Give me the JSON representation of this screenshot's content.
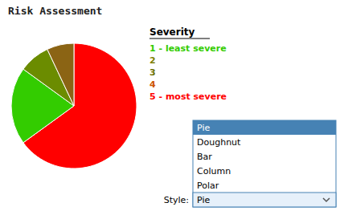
{
  "chart_data": {
    "type": "pie",
    "title": "Risk Assessment",
    "values": [
      65,
      20,
      8,
      7
    ],
    "colors": [
      "#ff0000",
      "#33cc00",
      "#6b8c00",
      "#8B6414"
    ],
    "legend_title": "Severity",
    "legend_items": [
      {
        "label": "1 - least severe",
        "color": "#33cc00"
      },
      {
        "label": "2",
        "color": "#808000"
      },
      {
        "label": "3",
        "color": "#6b7000"
      },
      {
        "label": "4",
        "color": "#cc5500"
      },
      {
        "label": "5 - most severe",
        "color": "#ff0000"
      }
    ],
    "dropdown_items": [
      "Pie",
      "Doughnut",
      "Bar",
      "Column",
      "Polar"
    ],
    "dropdown_selected": "Pie",
    "style_label": "Style:"
  }
}
